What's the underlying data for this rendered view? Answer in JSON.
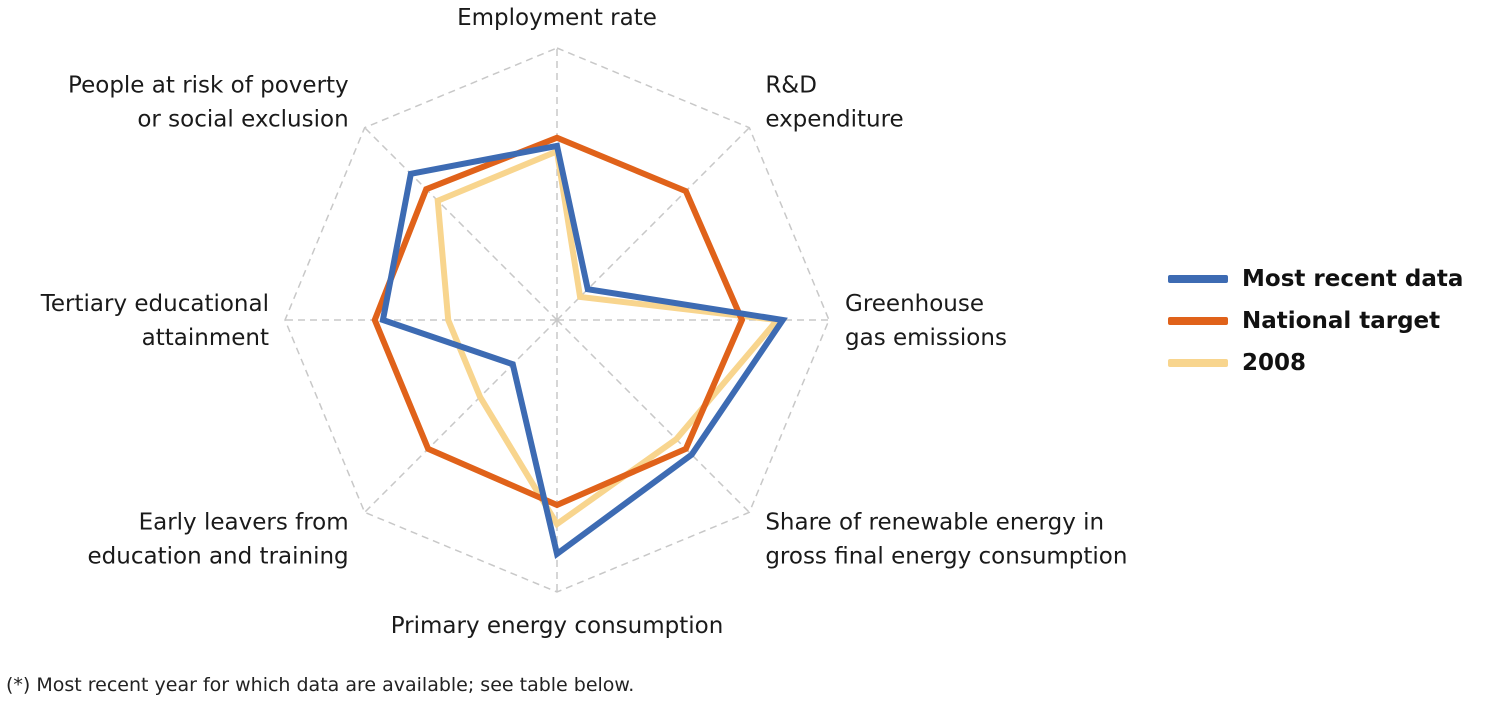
{
  "chart_data": {
    "type": "radar",
    "axes": [
      "Employment rate",
      "R&D expenditure",
      "Greenhouse gas emissions",
      "Share of renewable energy in gross final energy consumption",
      "Primary energy consumption",
      "Early leavers from education and training",
      "Tertiary educational attainment",
      "People at risk of poverty or social exclusion"
    ],
    "axis_label_lines": [
      [
        "Employment rate"
      ],
      [
        "R&D",
        "expenditure"
      ],
      [
        "Greenhouse",
        "gas emissions"
      ],
      [
        "Share of renewable energy in",
        "gross final energy consumption"
      ],
      [
        "Primary energy consumption"
      ],
      [
        "Early leavers from",
        "education and training"
      ],
      [
        "Tertiary educational",
        "attainment"
      ],
      [
        "People at risk of poverty",
        "or social exclusion"
      ]
    ],
    "rmax": 1.0,
    "grid_levels": [
      1.0
    ],
    "grid": true,
    "legend_position": "right",
    "series": [
      {
        "name": "Most recent data",
        "color": "#3d6bb3",
        "values": [
          0.64,
          0.16,
          0.83,
          0.7,
          0.86,
          0.23,
          0.64,
          0.76
        ]
      },
      {
        "name": "National target",
        "color": "#e0621a",
        "values": [
          0.67,
          0.67,
          0.68,
          0.67,
          0.68,
          0.67,
          0.67,
          0.68
        ]
      },
      {
        "name": "2008",
        "color": "#f8d58e",
        "values": [
          0.62,
          0.12,
          0.81,
          0.62,
          0.75,
          0.4,
          0.4,
          0.62
        ]
      }
    ]
  },
  "footnote": "(*)  Most recent year for which data are available; see table below."
}
